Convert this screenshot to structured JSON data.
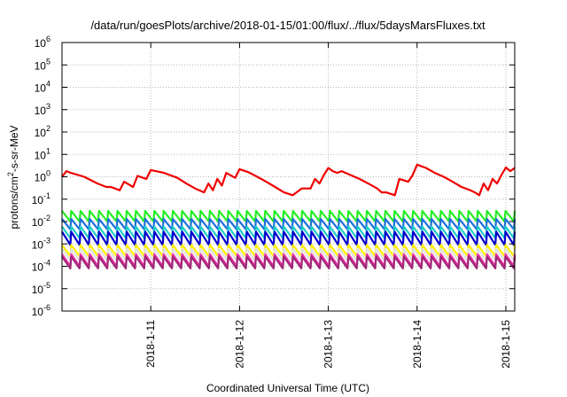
{
  "chart_data": {
    "type": "line",
    "title": "/data/run/goesPlots/archive/2018-01-15/01:00/flux/../flux/5daysMarsFluxes.txt",
    "xlabel": "Coordinated Universal Time (UTC)",
    "ylabel": "protons/cm2-s-sr-MeV",
    "ylabel_parts": {
      "pre": "protons/cm",
      "sup": "2",
      "post": "-s-sr-MeV"
    },
    "x_unit": "days since 2018-01-10 00:00 UTC",
    "xlim": [
      0.0,
      5.1
    ],
    "ylim_exp": [
      -6,
      6
    ],
    "y_scale": "log",
    "grid": true,
    "x_ticks": [
      {
        "value": 1,
        "label": "2018-1-11"
      },
      {
        "value": 2,
        "label": "2018-1-12"
      },
      {
        "value": 3,
        "label": "2018-1-13"
      },
      {
        "value": 4,
        "label": "2018-1-14"
      },
      {
        "value": 5,
        "label": "2018-1-15"
      }
    ],
    "y_ticks": [
      {
        "base": "10",
        "exp": "-6"
      },
      {
        "base": "10",
        "exp": "-5"
      },
      {
        "base": "10",
        "exp": "-4"
      },
      {
        "base": "10",
        "exp": "-3"
      },
      {
        "base": "10",
        "exp": "-2"
      },
      {
        "base": "10",
        "exp": "-1"
      },
      {
        "base": "10",
        "exp": "0"
      },
      {
        "base": "10",
        "exp": "1"
      },
      {
        "base": "10",
        "exp": "2"
      },
      {
        "base": "10",
        "exp": "3"
      },
      {
        "base": "10",
        "exp": "4"
      },
      {
        "base": "10",
        "exp": "5"
      },
      {
        "base": "10",
        "exp": "6"
      }
    ],
    "series": [
      {
        "color": "#ee0000",
        "x": [
          0.0,
          0.05,
          0.1,
          0.25,
          0.4,
          0.5,
          0.55,
          0.65,
          0.7,
          0.8,
          0.85,
          0.95,
          1.0,
          1.15,
          1.3,
          1.4,
          1.5,
          1.6,
          1.65,
          1.7,
          1.75,
          1.8,
          1.85,
          1.95,
          2.0,
          2.1,
          2.2,
          2.3,
          2.4,
          2.5,
          2.6,
          2.7,
          2.8,
          2.85,
          2.9,
          2.95,
          3.0,
          3.05,
          3.1,
          3.15,
          3.25,
          3.35,
          3.45,
          3.55,
          3.6,
          3.65,
          3.75,
          3.8,
          3.9,
          3.95,
          4.0,
          4.1,
          4.2,
          4.3,
          4.4,
          4.5,
          4.6,
          4.65,
          4.7,
          4.75,
          4.8,
          4.85,
          4.9,
          4.95,
          5.0,
          5.05,
          5.1
        ],
        "y": [
          1.0,
          1.8,
          1.5,
          1.0,
          0.5,
          0.35,
          0.35,
          0.25,
          0.6,
          0.35,
          1.1,
          0.8,
          2.0,
          1.5,
          0.9,
          0.5,
          0.3,
          0.2,
          0.5,
          0.25,
          0.8,
          0.4,
          1.5,
          0.9,
          2.2,
          1.6,
          1.0,
          0.6,
          0.35,
          0.2,
          0.15,
          0.3,
          0.3,
          0.8,
          0.5,
          1.2,
          2.5,
          1.8,
          1.5,
          1.8,
          1.2,
          0.8,
          0.5,
          0.3,
          0.2,
          0.2,
          0.15,
          0.8,
          0.6,
          1.2,
          3.5,
          2.5,
          1.5,
          1.0,
          0.6,
          0.35,
          0.25,
          0.2,
          0.15,
          0.5,
          0.25,
          0.8,
          0.5,
          1.2,
          2.6,
          1.8,
          2.5
        ]
      },
      {
        "color": "#22ee22",
        "sawtooth": {
          "max": 0.03,
          "min": 0.01,
          "count": 49
        }
      },
      {
        "color": "#1e6fdc",
        "sawtooth": {
          "max": 0.013,
          "min": 0.0045,
          "count": 49
        }
      },
      {
        "color": "#22ccc8",
        "sawtooth": {
          "max": 0.006,
          "min": 0.0018,
          "count": 49
        }
      },
      {
        "color": "#0000cc",
        "sawtooth": {
          "max": 0.0035,
          "min": 0.0009,
          "count": 49
        }
      },
      {
        "color": "#ffee00",
        "sawtooth": {
          "max": 0.0009,
          "min": 0.00028,
          "count": 49
        }
      },
      {
        "color": "#e0e0e0",
        "sawtooth": {
          "max": 0.0006,
          "min": 0.00018,
          "count": 49
        }
      },
      {
        "color": "#ee33aa",
        "sawtooth": {
          "max": 0.00035,
          "min": 0.0001,
          "count": 49
        }
      },
      {
        "color": "#a02878",
        "sawtooth": {
          "max": 0.00027,
          "min": 8e-05,
          "count": 49
        }
      }
    ]
  }
}
